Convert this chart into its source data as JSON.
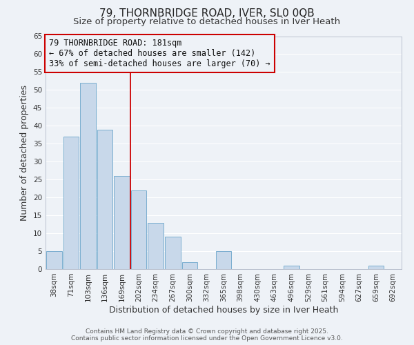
{
  "title": "79, THORNBRIDGE ROAD, IVER, SL0 0QB",
  "subtitle": "Size of property relative to detached houses in Iver Heath",
  "xlabel": "Distribution of detached houses by size in Iver Heath",
  "ylabel": "Number of detached properties",
  "bin_labels": [
    "38sqm",
    "71sqm",
    "103sqm",
    "136sqm",
    "169sqm",
    "202sqm",
    "234sqm",
    "267sqm",
    "300sqm",
    "332sqm",
    "365sqm",
    "398sqm",
    "430sqm",
    "463sqm",
    "496sqm",
    "529sqm",
    "561sqm",
    "594sqm",
    "627sqm",
    "659sqm",
    "692sqm"
  ],
  "bar_heights": [
    5,
    37,
    52,
    39,
    26,
    22,
    13,
    9,
    2,
    0,
    5,
    0,
    0,
    0,
    1,
    0,
    0,
    0,
    0,
    1,
    0
  ],
  "bar_color": "#c8d8ea",
  "bar_edge_color": "#7aaed0",
  "ylim": [
    0,
    65
  ],
  "yticks": [
    0,
    5,
    10,
    15,
    20,
    25,
    30,
    35,
    40,
    45,
    50,
    55,
    60,
    65
  ],
  "vline_x": 4.5,
  "vline_color": "#cc0000",
  "annotation_title": "79 THORNBRIDGE ROAD: 181sqm",
  "annotation_line1": "← 67% of detached houses are smaller (142)",
  "annotation_line2": "33% of semi-detached houses are larger (70) →",
  "annotation_box_color": "#cc0000",
  "footer_line1": "Contains HM Land Registry data © Crown copyright and database right 2025.",
  "footer_line2": "Contains public sector information licensed under the Open Government Licence v3.0.",
  "background_color": "#eef2f7",
  "grid_color": "#ffffff",
  "title_fontsize": 11,
  "subtitle_fontsize": 9.5,
  "axis_label_fontsize": 9,
  "tick_fontsize": 7.5,
  "annotation_fontsize": 8.5,
  "footer_fontsize": 6.5
}
